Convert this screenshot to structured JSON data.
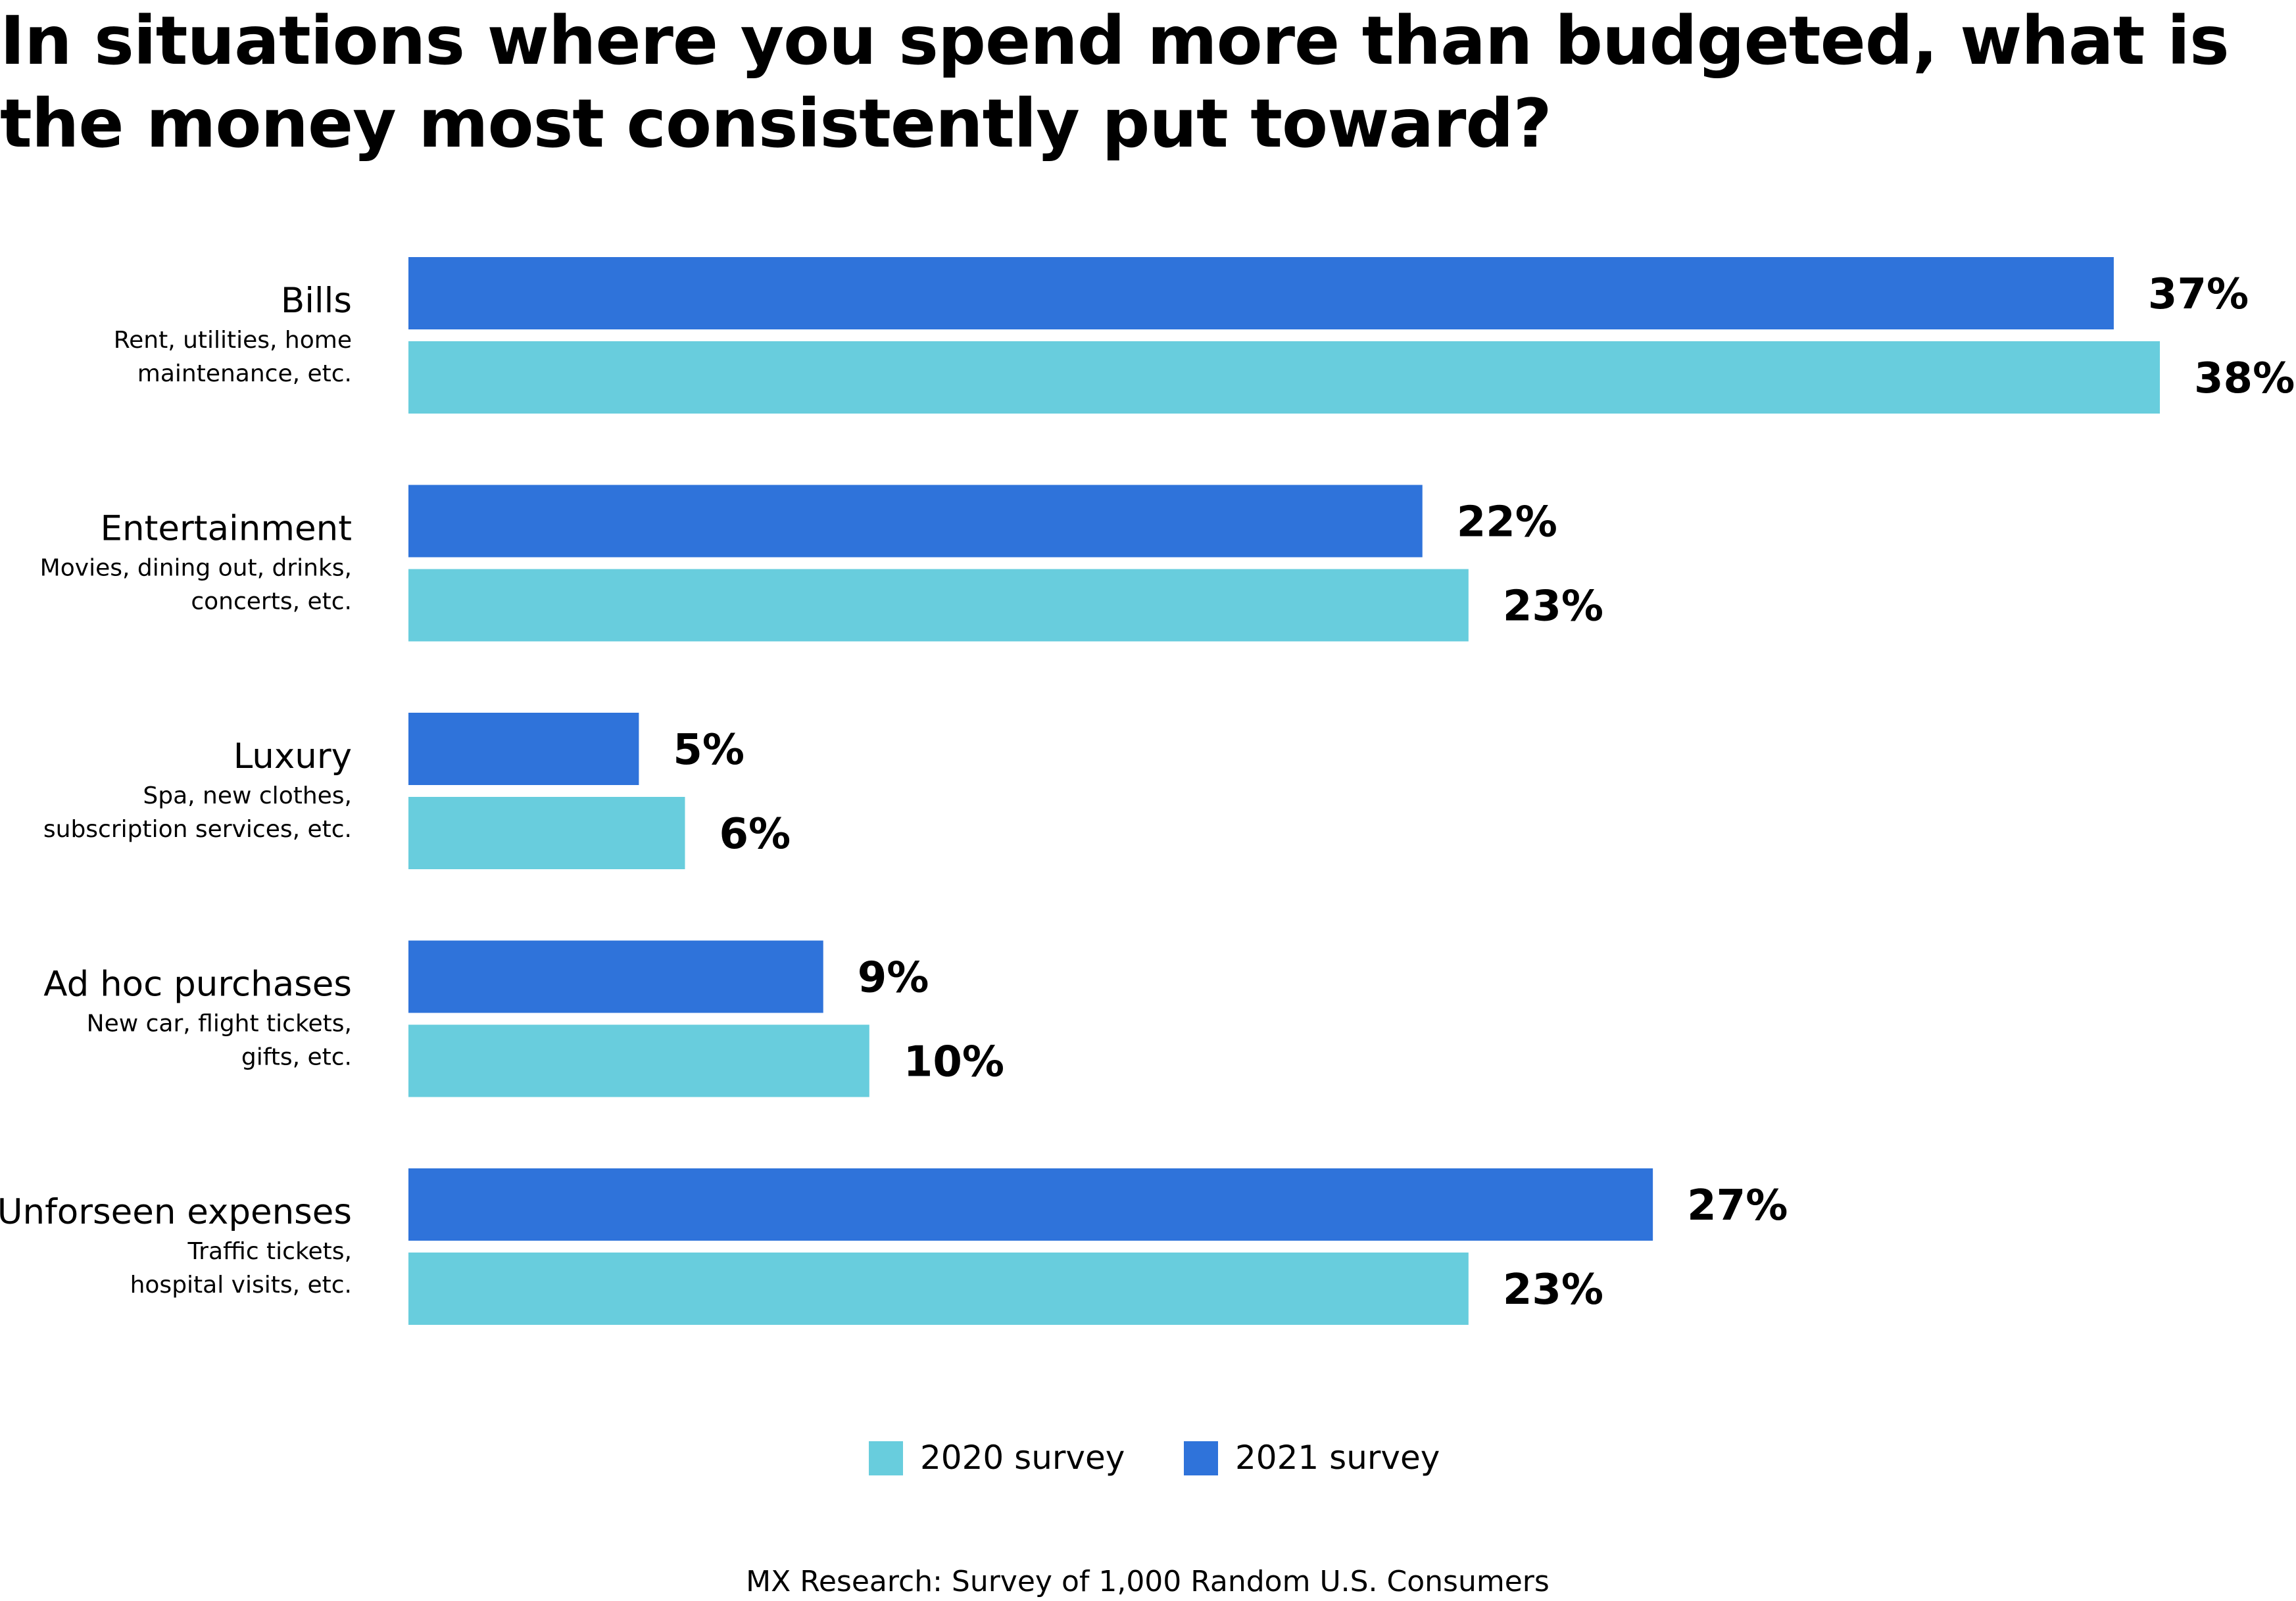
{
  "chart_data": {
    "type": "bar",
    "orientation": "horizontal",
    "title": "In situations where you spend more than budgeted, what is the money most consistently put toward?",
    "categories": [
      "Bills",
      "Entertainment",
      "Luxury",
      "Ad hoc purchases",
      "Unforseen expenses"
    ],
    "category_descriptions": [
      [
        "Rent, utilities, home",
        "maintenance, etc."
      ],
      [
        "Movies, dining out, drinks,",
        "concerts, etc."
      ],
      [
        "Spa, new clothes,",
        "subscription services, etc."
      ],
      [
        "New car, flight tickets,",
        "gifts, etc."
      ],
      [
        "Traffic tickets,",
        "hospital visits, etc."
      ]
    ],
    "series": [
      {
        "name": "2021 survey",
        "color": "#2f73da",
        "values": [
          37,
          22,
          5,
          9,
          27
        ]
      },
      {
        "name": "2020 survey",
        "color": "#68cddd",
        "values": [
          38,
          23,
          6,
          10,
          23
        ]
      }
    ],
    "value_suffix": "%",
    "legend": [
      {
        "name": "2020 survey",
        "color": "#68cddd"
      },
      {
        "name": "2021 survey",
        "color": "#2f73da"
      }
    ],
    "legend_position": "bottom",
    "grid": false,
    "xlim": [
      0,
      38
    ],
    "source": "MX Research: Survey of 1,000 Random U.S. Consumers"
  }
}
